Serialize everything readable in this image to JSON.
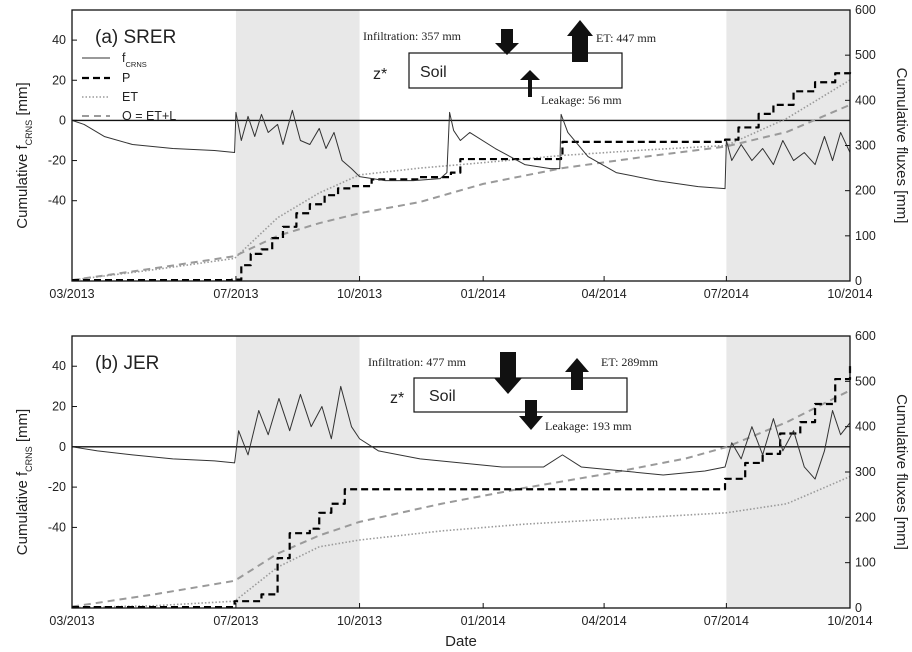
{
  "chart_data": [
    {
      "type": "line",
      "title": "(a) SRER",
      "ylabel_left": "Cumulative f_CRNS [mm]",
      "ylabel_left_main": "Cumulative f",
      "ylabel_left_sub": "CRNS",
      "ylabel_left_unit": " [mm]",
      "ylabel_right": "Cumulative fluxes [mm]",
      "xlabel": "",
      "x_ticks": [
        "03/2013",
        "07/2013",
        "10/2013",
        "01/2014",
        "04/2014",
        "07/2014",
        "10/2014"
      ],
      "x_range": [
        "2013-03-01",
        "2014-10-01"
      ],
      "ylim_left": [
        -80,
        55
      ],
      "ylim_right": [
        0,
        600
      ],
      "y_ticks_left": [
        "40",
        "20",
        "0",
        "-20",
        "-40"
      ],
      "y_ticks_right": [
        "0",
        "100",
        "200",
        "300",
        "400",
        "500",
        "600"
      ],
      "shaded_periods": [
        [
          "2013-07-01",
          "2013-10-01"
        ],
        [
          "2014-07-01",
          "2014-10-01"
        ]
      ],
      "legend": {
        "placement": "top-left",
        "entries": [
          {
            "label": "f",
            "sub": "CRNS",
            "style": "solid"
          },
          {
            "label": "P",
            "style": "dashed-black"
          },
          {
            "label": "ET",
            "style": "dotted-gray"
          },
          {
            "label": "O = ET+L",
            "style": "dashed-gray"
          }
        ]
      },
      "annotation": {
        "soil_label": "Soil",
        "depth_label": "z*",
        "infiltration": "Infiltration: 357 mm",
        "et": "ET: 447 mm",
        "leakage": "Leakage: 56 mm"
      },
      "series": [
        {
          "name": "f_CRNS",
          "axis": "left",
          "color": "#333333",
          "points": [
            [
              "2013-03-01",
              0
            ],
            [
              "2013-03-10",
              -2
            ],
            [
              "2013-03-25",
              -8
            ],
            [
              "2013-04-15",
              -12
            ],
            [
              "2013-05-15",
              -14
            ],
            [
              "2013-06-15",
              -15
            ],
            [
              "2013-06-30",
              -16
            ],
            [
              "2013-07-01",
              4
            ],
            [
              "2013-07-05",
              -10
            ],
            [
              "2013-07-10",
              2
            ],
            [
              "2013-07-15",
              -8
            ],
            [
              "2013-07-20",
              3
            ],
            [
              "2013-07-25",
              -6
            ],
            [
              "2013-08-01",
              -2
            ],
            [
              "2013-08-05",
              -12
            ],
            [
              "2013-08-12",
              5
            ],
            [
              "2013-08-18",
              -10
            ],
            [
              "2013-08-25",
              -12
            ],
            [
              "2013-09-01",
              -4
            ],
            [
              "2013-09-06",
              -14
            ],
            [
              "2013-09-12",
              -6
            ],
            [
              "2013-09-18",
              -20
            ],
            [
              "2013-09-25",
              -24
            ],
            [
              "2013-10-01",
              -28
            ],
            [
              "2013-10-20",
              -30
            ],
            [
              "2013-11-10",
              -30
            ],
            [
              "2013-11-30",
              -29
            ],
            [
              "2013-12-05",
              -26
            ],
            [
              "2013-12-07",
              4
            ],
            [
              "2013-12-10",
              -5
            ],
            [
              "2013-12-15",
              -10
            ],
            [
              "2013-12-22",
              -6
            ],
            [
              "2014-01-10",
              -14
            ],
            [
              "2014-02-01",
              -22
            ],
            [
              "2014-02-20",
              -24
            ],
            [
              "2014-02-27",
              -24
            ],
            [
              "2014-02-28",
              3
            ],
            [
              "2014-03-05",
              -6
            ],
            [
              "2014-03-20",
              -18
            ],
            [
              "2014-04-10",
              -26
            ],
            [
              "2014-05-10",
              -30
            ],
            [
              "2014-06-10",
              -33
            ],
            [
              "2014-06-30",
              -34
            ],
            [
              "2014-07-01",
              -10
            ],
            [
              "2014-07-05",
              -20
            ],
            [
              "2014-07-12",
              -12
            ],
            [
              "2014-07-20",
              -20
            ],
            [
              "2014-07-28",
              -14
            ],
            [
              "2014-08-05",
              -22
            ],
            [
              "2014-08-12",
              -10
            ],
            [
              "2014-08-20",
              -20
            ],
            [
              "2014-08-28",
              -16
            ],
            [
              "2014-09-05",
              -22
            ],
            [
              "2014-09-12",
              -8
            ],
            [
              "2014-09-18",
              -20
            ],
            [
              "2014-09-24",
              -6
            ],
            [
              "2014-10-01",
              -16
            ]
          ]
        },
        {
          "name": "P",
          "axis": "right",
          "color": "#000000",
          "points": [
            [
              "2013-03-01",
              2
            ],
            [
              "2013-06-28",
              3
            ],
            [
              "2013-07-05",
              35
            ],
            [
              "2013-07-12",
              60
            ],
            [
              "2013-07-20",
              70
            ],
            [
              "2013-07-28",
              95
            ],
            [
              "2013-08-05",
              120
            ],
            [
              "2013-08-15",
              150
            ],
            [
              "2013-08-25",
              170
            ],
            [
              "2013-09-05",
              190
            ],
            [
              "2013-09-15",
              205
            ],
            [
              "2013-09-25",
              210
            ],
            [
              "2013-10-10",
              225
            ],
            [
              "2013-11-15",
              230
            ],
            [
              "2013-12-08",
              240
            ],
            [
              "2013-12-15",
              270
            ],
            [
              "2014-02-28",
              272
            ],
            [
              "2014-03-01",
              308
            ],
            [
              "2014-06-30",
              313
            ],
            [
              "2014-07-10",
              340
            ],
            [
              "2014-07-25",
              370
            ],
            [
              "2014-08-05",
              390
            ],
            [
              "2014-08-20",
              420
            ],
            [
              "2014-09-05",
              440
            ],
            [
              "2014-09-20",
              460
            ],
            [
              "2014-10-01",
              468
            ]
          ]
        },
        {
          "name": "ET",
          "axis": "right",
          "color": "#9a9a9a",
          "points": [
            [
              "2013-03-01",
              2
            ],
            [
              "2013-05-01",
              25
            ],
            [
              "2013-06-30",
              50
            ],
            [
              "2013-08-01",
              140
            ],
            [
              "2013-09-01",
              195
            ],
            [
              "2013-10-01",
              235
            ],
            [
              "2013-11-15",
              250
            ],
            [
              "2014-01-01",
              262
            ],
            [
              "2014-03-01",
              278
            ],
            [
              "2014-05-01",
              290
            ],
            [
              "2014-07-01",
              300
            ],
            [
              "2014-08-15",
              360
            ],
            [
              "2014-10-01",
              445
            ]
          ]
        },
        {
          "name": "O = ET+L",
          "axis": "right",
          "color": "#9a9a9a",
          "points": [
            [
              "2013-03-01",
              2
            ],
            [
              "2013-05-01",
              28
            ],
            [
              "2013-06-30",
              55
            ],
            [
              "2013-08-01",
              100
            ],
            [
              "2013-09-01",
              128
            ],
            [
              "2013-10-01",
              150
            ],
            [
              "2013-11-15",
              175
            ],
            [
              "2014-01-01",
              215
            ],
            [
              "2014-03-01",
              250
            ],
            [
              "2014-05-01",
              275
            ],
            [
              "2014-07-01",
              298
            ],
            [
              "2014-08-15",
              330
            ],
            [
              "2014-10-01",
              390
            ]
          ]
        }
      ]
    },
    {
      "type": "line",
      "title": "(b) JER",
      "ylabel_left": "Cumulative f_CRNS [mm]",
      "ylabel_left_main": "Cumulative f",
      "ylabel_left_sub": "CRNS",
      "ylabel_left_unit": " [mm]",
      "ylabel_right": "Cumulative fluxes [mm]",
      "xlabel": "Date",
      "x_ticks": [
        "03/2013",
        "07/2013",
        "10/2013",
        "01/2014",
        "04/2014",
        "07/2014",
        "10/2014"
      ],
      "x_range": [
        "2013-03-01",
        "2014-10-01"
      ],
      "ylim_left": [
        -80,
        55
      ],
      "ylim_right": [
        0,
        600
      ],
      "y_ticks_left": [
        "40",
        "20",
        "0",
        "-20",
        "-40"
      ],
      "y_ticks_right": [
        "0",
        "100",
        "200",
        "300",
        "400",
        "500",
        "600"
      ],
      "shaded_periods": [
        [
          "2013-07-01",
          "2013-10-01"
        ],
        [
          "2014-07-01",
          "2014-10-01"
        ]
      ],
      "annotation": {
        "soil_label": "Soil",
        "depth_label": "z*",
        "infiltration": "Infiltration: 477 mm",
        "et": "ET: 289mm",
        "leakage": "Leakage: 193 mm"
      },
      "series": [
        {
          "name": "f_CRNS",
          "axis": "left",
          "color": "#333333",
          "points": [
            [
              "2013-03-01",
              0
            ],
            [
              "2013-03-20",
              -2
            ],
            [
              "2013-04-15",
              -4
            ],
            [
              "2013-05-15",
              -6
            ],
            [
              "2013-06-15",
              -7
            ],
            [
              "2013-06-30",
              -8
            ],
            [
              "2013-07-03",
              8
            ],
            [
              "2013-07-10",
              -4
            ],
            [
              "2013-07-18",
              18
            ],
            [
              "2013-07-25",
              6
            ],
            [
              "2013-08-02",
              24
            ],
            [
              "2013-08-10",
              8
            ],
            [
              "2013-08-18",
              26
            ],
            [
              "2013-08-26",
              10
            ],
            [
              "2013-09-03",
              20
            ],
            [
              "2013-09-10",
              4
            ],
            [
              "2013-09-17",
              30
            ],
            [
              "2013-09-25",
              10
            ],
            [
              "2013-10-01",
              4
            ],
            [
              "2013-10-15",
              -2
            ],
            [
              "2013-11-15",
              -6
            ],
            [
              "2013-12-15",
              -8
            ],
            [
              "2014-01-15",
              -10
            ],
            [
              "2014-02-15",
              -10
            ],
            [
              "2014-03-01",
              -4
            ],
            [
              "2014-03-15",
              -10
            ],
            [
              "2014-04-15",
              -12
            ],
            [
              "2014-05-15",
              -14
            ],
            [
              "2014-06-15",
              -12
            ],
            [
              "2014-06-30",
              -10
            ],
            [
              "2014-07-05",
              2
            ],
            [
              "2014-07-12",
              -6
            ],
            [
              "2014-07-20",
              10
            ],
            [
              "2014-07-28",
              -4
            ],
            [
              "2014-08-05",
              14
            ],
            [
              "2014-08-12",
              -2
            ],
            [
              "2014-08-20",
              8
            ],
            [
              "2014-08-28",
              -10
            ],
            [
              "2014-09-05",
              -16
            ],
            [
              "2014-09-12",
              -2
            ],
            [
              "2014-09-18",
              18
            ],
            [
              "2014-09-24",
              6
            ],
            [
              "2014-10-01",
              12
            ]
          ]
        },
        {
          "name": "P",
          "axis": "right",
          "color": "#000000",
          "points": [
            [
              "2013-03-01",
              2
            ],
            [
              "2013-06-30",
              15
            ],
            [
              "2013-07-20",
              30
            ],
            [
              "2013-08-01",
              110
            ],
            [
              "2013-08-10",
              165
            ],
            [
              "2013-08-25",
              175
            ],
            [
              "2013-09-01",
              210
            ],
            [
              "2013-09-10",
              230
            ],
            [
              "2013-09-20",
              262
            ],
            [
              "2014-06-30",
              285
            ],
            [
              "2014-07-15",
              320
            ],
            [
              "2014-07-28",
              340
            ],
            [
              "2014-08-10",
              385
            ],
            [
              "2014-08-25",
              410
            ],
            [
              "2014-09-05",
              450
            ],
            [
              "2014-09-20",
              505
            ],
            [
              "2014-10-01",
              538
            ]
          ]
        },
        {
          "name": "ET",
          "axis": "right",
          "color": "#9a9a9a",
          "points": [
            [
              "2013-03-01",
              1
            ],
            [
              "2013-05-01",
              5
            ],
            [
              "2013-06-30",
              15
            ],
            [
              "2013-08-01",
              90
            ],
            [
              "2013-09-01",
              135
            ],
            [
              "2013-10-01",
              150
            ],
            [
              "2013-12-01",
              170
            ],
            [
              "2014-02-01",
              185
            ],
            [
              "2014-04-01",
              195
            ],
            [
              "2014-06-01",
              205
            ],
            [
              "2014-07-01",
              210
            ],
            [
              "2014-08-15",
              230
            ],
            [
              "2014-10-01",
              290
            ]
          ]
        },
        {
          "name": "O = ET+L",
          "axis": "right",
          "color": "#9a9a9a",
          "points": [
            [
              "2013-03-01",
              3
            ],
            [
              "2013-05-01",
              30
            ],
            [
              "2013-06-30",
              60
            ],
            [
              "2013-08-01",
              120
            ],
            [
              "2013-09-01",
              160
            ],
            [
              "2013-10-01",
              190
            ],
            [
              "2013-12-01",
              230
            ],
            [
              "2014-02-01",
              265
            ],
            [
              "2014-04-01",
              295
            ],
            [
              "2014-06-01",
              330
            ],
            [
              "2014-07-01",
              355
            ],
            [
              "2014-08-15",
              410
            ],
            [
              "2014-10-01",
              480
            ]
          ]
        }
      ]
    }
  ]
}
